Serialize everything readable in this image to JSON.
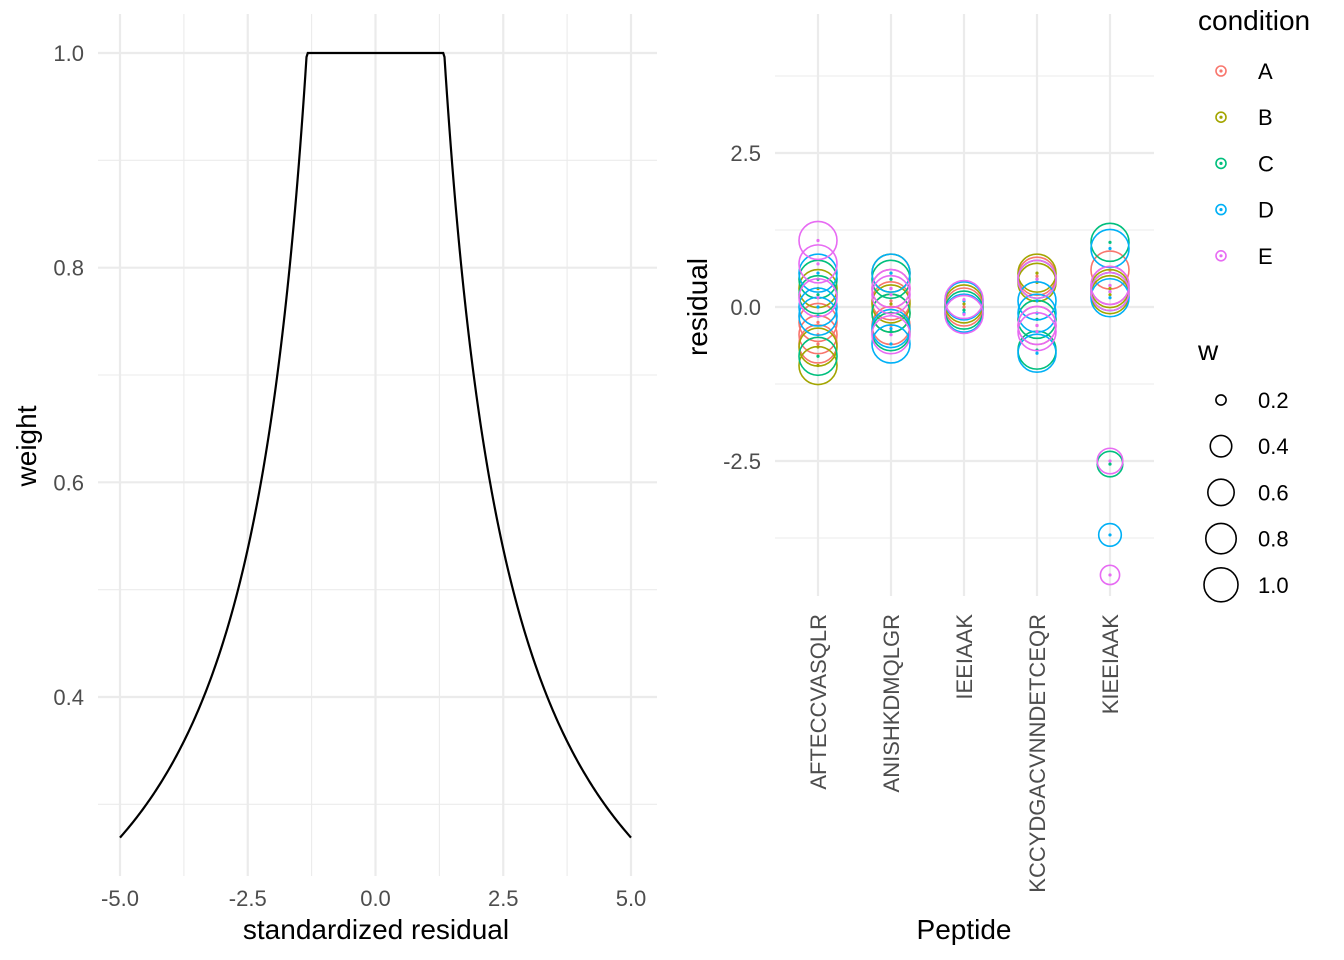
{
  "chart_data": [
    {
      "type": "line",
      "xlabel": "standardized residual",
      "ylabel": "weight",
      "xlim": [
        -5.0,
        5.0
      ],
      "ylim": [
        0.28,
        1.0
      ],
      "x_ticks": [
        -5.0,
        -2.5,
        0.0,
        2.5,
        5.0
      ],
      "x_tick_labels": [
        "-5.0",
        "-2.5",
        "0.0",
        "2.5",
        "5.0"
      ],
      "y_ticks": [
        0.4,
        0.6,
        0.8,
        1.0
      ],
      "y_tick_labels": [
        "0.4",
        "0.6",
        "0.8",
        "1.0"
      ],
      "grid": true,
      "series": [
        {
          "color": "#000000",
          "x": [
            -5.0,
            -4.5,
            -4.0,
            -3.5,
            -3.0,
            -2.5,
            -2.0,
            -1.75,
            -1.5,
            -1.345,
            0.0,
            1.345,
            1.5,
            1.75,
            2.0,
            2.5,
            3.0,
            3.5,
            4.0,
            4.5,
            5.0
          ],
          "y": [
            0.269,
            0.299,
            0.336,
            0.384,
            0.448,
            0.538,
            0.673,
            0.769,
            0.897,
            1.0,
            1.0,
            1.0,
            0.897,
            0.769,
            0.673,
            0.538,
            0.448,
            0.384,
            0.336,
            0.299,
            0.269
          ]
        }
      ]
    },
    {
      "type": "scatter",
      "xlabel": "Peptide",
      "ylabel": "residual",
      "categories": [
        "AFTECCVASQLR",
        "ANISHKDMQLGR",
        "IEEIAAK",
        "KCCYDGACVNNDETCEQR",
        "KIEEIAAK"
      ],
      "ylim": [
        -4.6,
        4.6
      ],
      "y_ticks": [
        -2.5,
        0.0,
        2.5
      ],
      "y_tick_labels": [
        "-2.5",
        "0.0",
        "2.5"
      ],
      "grid": true,
      "legend": {
        "condition": {
          "title": "condition",
          "entries": [
            {
              "label": "A",
              "color": "#F8766D"
            },
            {
              "label": "B",
              "color": "#A3A500"
            },
            {
              "label": "C",
              "color": "#00BF7D"
            },
            {
              "label": "D",
              "color": "#00B0F6"
            },
            {
              "label": "E",
              "color": "#E76BF3"
            }
          ]
        },
        "w": {
          "title": "w",
          "entries": [
            {
              "label": "0.2",
              "value": 0.2
            },
            {
              "label": "0.4",
              "value": 0.4
            },
            {
              "label": "0.6",
              "value": 0.6
            },
            {
              "label": "0.8",
              "value": 0.8
            },
            {
              "label": "1.0",
              "value": 1.0
            }
          ]
        },
        "placement": "right"
      },
      "points": [
        {
          "peptide": "AFTECCVASQLR",
          "condition": "A",
          "residual": -0.45,
          "w": 1.0
        },
        {
          "peptide": "AFTECCVASQLR",
          "condition": "A",
          "residual": -0.25,
          "w": 1.0
        },
        {
          "peptide": "AFTECCVASQLR",
          "condition": "A",
          "residual": -0.6,
          "w": 1.0
        },
        {
          "peptide": "AFTECCVASQLR",
          "condition": "B",
          "residual": -0.95,
          "w": 1.0
        },
        {
          "peptide": "AFTECCVASQLR",
          "condition": "B",
          "residual": -0.65,
          "w": 1.0
        },
        {
          "peptide": "AFTECCVASQLR",
          "condition": "B",
          "residual": 0.3,
          "w": 1.0
        },
        {
          "peptide": "AFTECCVASQLR",
          "condition": "C",
          "residual": -0.8,
          "w": 1.0
        },
        {
          "peptide": "AFTECCVASQLR",
          "condition": "C",
          "residual": 0.2,
          "w": 1.0
        },
        {
          "peptide": "AFTECCVASQLR",
          "condition": "C",
          "residual": 0.45,
          "w": 1.0
        },
        {
          "peptide": "AFTECCVASQLR",
          "condition": "D",
          "residual": 0.0,
          "w": 1.0
        },
        {
          "peptide": "AFTECCVASQLR",
          "condition": "D",
          "residual": 0.55,
          "w": 1.0
        },
        {
          "peptide": "AFTECCVASQLR",
          "condition": "D",
          "residual": -0.15,
          "w": 1.0
        },
        {
          "peptide": "AFTECCVASQLR",
          "condition": "E",
          "residual": 1.08,
          "w": 1.0
        },
        {
          "peptide": "AFTECCVASQLR",
          "condition": "E",
          "residual": 0.7,
          "w": 1.0
        },
        {
          "peptide": "AFTECCVASQLR",
          "condition": "E",
          "residual": 0.15,
          "w": 1.0
        },
        {
          "peptide": "ANISHKDMQLGR",
          "condition": "A",
          "residual": 0.3,
          "w": 1.0
        },
        {
          "peptide": "ANISHKDMQLGR",
          "condition": "A",
          "residual": -0.3,
          "w": 1.0
        },
        {
          "peptide": "ANISHKDMQLGR",
          "condition": "A",
          "residual": 0.1,
          "w": 1.0
        },
        {
          "peptide": "ANISHKDMQLGR",
          "condition": "B",
          "residual": 0.55,
          "w": 1.0
        },
        {
          "peptide": "ANISHKDMQLGR",
          "condition": "B",
          "residual": -0.1,
          "w": 1.0
        },
        {
          "peptide": "ANISHKDMQLGR",
          "condition": "B",
          "residual": 0.05,
          "w": 1.0
        },
        {
          "peptide": "ANISHKDMQLGR",
          "condition": "C",
          "residual": 0.45,
          "w": 1.0
        },
        {
          "peptide": "ANISHKDMQLGR",
          "condition": "C",
          "residual": -0.1,
          "w": 1.0
        },
        {
          "peptide": "ANISHKDMQLGR",
          "condition": "C",
          "residual": -0.4,
          "w": 1.0
        },
        {
          "peptide": "ANISHKDMQLGR",
          "condition": "D",
          "residual": -0.6,
          "w": 1.0
        },
        {
          "peptide": "ANISHKDMQLGR",
          "condition": "D",
          "residual": 0.55,
          "w": 1.0
        },
        {
          "peptide": "ANISHKDMQLGR",
          "condition": "D",
          "residual": -0.35,
          "w": 1.0
        },
        {
          "peptide": "ANISHKDMQLGR",
          "condition": "E",
          "residual": 0.3,
          "w": 1.0
        },
        {
          "peptide": "ANISHKDMQLGR",
          "condition": "E",
          "residual": -0.45,
          "w": 1.0
        },
        {
          "peptide": "ANISHKDMQLGR",
          "condition": "E",
          "residual": 0.2,
          "w": 1.0
        },
        {
          "peptide": "IEEIAAK",
          "condition": "A",
          "residual": 0.0,
          "w": 1.0
        },
        {
          "peptide": "IEEIAAK",
          "condition": "B",
          "residual": 0.05,
          "w": 1.0
        },
        {
          "peptide": "IEEIAAK",
          "condition": "C",
          "residual": -0.05,
          "w": 1.0
        },
        {
          "peptide": "IEEIAAK",
          "condition": "D",
          "residual": 0.1,
          "w": 1.0
        },
        {
          "peptide": "IEEIAAK",
          "condition": "D",
          "residual": -0.1,
          "w": 1.0
        },
        {
          "peptide": "IEEIAAK",
          "condition": "E",
          "residual": 0.12,
          "w": 1.0
        },
        {
          "peptide": "IEEIAAK",
          "condition": "E",
          "residual": -0.12,
          "w": 1.0
        },
        {
          "peptide": "KCCYDGACVNNDETCEQR",
          "condition": "A",
          "residual": 0.5,
          "w": 1.0
        },
        {
          "peptide": "KCCYDGACVNNDETCEQR",
          "condition": "A",
          "residual": -0.3,
          "w": 1.0
        },
        {
          "peptide": "KCCYDGACVNNDETCEQR",
          "condition": "B",
          "residual": 0.55,
          "w": 1.0
        },
        {
          "peptide": "KCCYDGACVNNDETCEQR",
          "condition": "B",
          "residual": 0.4,
          "w": 1.0
        },
        {
          "peptide": "KCCYDGACVNNDETCEQR",
          "condition": "C",
          "residual": 0.45,
          "w": 1.0
        },
        {
          "peptide": "KCCYDGACVNNDETCEQR",
          "condition": "C",
          "residual": -0.2,
          "w": 1.0
        },
        {
          "peptide": "KCCYDGACVNNDETCEQR",
          "condition": "C",
          "residual": -0.7,
          "w": 1.0
        },
        {
          "peptide": "KCCYDGACVNNDETCEQR",
          "condition": "D",
          "residual": -0.75,
          "w": 1.0
        },
        {
          "peptide": "KCCYDGACVNNDETCEQR",
          "condition": "D",
          "residual": -0.1,
          "w": 1.0
        },
        {
          "peptide": "KCCYDGACVNNDETCEQR",
          "condition": "D",
          "residual": 0.1,
          "w": 1.0
        },
        {
          "peptide": "KCCYDGACVNNDETCEQR",
          "condition": "E",
          "residual": -0.4,
          "w": 1.0
        },
        {
          "peptide": "KCCYDGACVNNDETCEQR",
          "condition": "E",
          "residual": 0.45,
          "w": 1.0
        },
        {
          "peptide": "KCCYDGACVNNDETCEQR",
          "condition": "E",
          "residual": -0.3,
          "w": 1.0
        },
        {
          "peptide": "KIEEIAAK",
          "condition": "A",
          "residual": 0.6,
          "w": 1.0
        },
        {
          "peptide": "KIEEIAAK",
          "condition": "A",
          "residual": 0.35,
          "w": 1.0
        },
        {
          "peptide": "KIEEIAAK",
          "condition": "B",
          "residual": 0.2,
          "w": 1.0
        },
        {
          "peptide": "KIEEIAAK",
          "condition": "B",
          "residual": 0.3,
          "w": 1.0
        },
        {
          "peptide": "KIEEIAAK",
          "condition": "C",
          "residual": 1.05,
          "w": 1.0
        },
        {
          "peptide": "KIEEIAAK",
          "condition": "C",
          "residual": 0.25,
          "w": 1.0
        },
        {
          "peptide": "KIEEIAAK",
          "condition": "D",
          "residual": 0.95,
          "w": 1.0
        },
        {
          "peptide": "KIEEIAAK",
          "condition": "D",
          "residual": 0.15,
          "w": 1.0
        },
        {
          "peptide": "KIEEIAAK",
          "condition": "E",
          "residual": 0.35,
          "w": 1.0
        },
        {
          "peptide": "KIEEIAAK",
          "condition": "E",
          "residual": 0.25,
          "w": 1.0
        },
        {
          "peptide": "KIEEIAAK",
          "condition": "C",
          "residual": -2.55,
          "w": 0.4
        },
        {
          "peptide": "KIEEIAAK",
          "condition": "E",
          "residual": -2.5,
          "w": 0.4
        },
        {
          "peptide": "KIEEIAAK",
          "condition": "D",
          "residual": -3.7,
          "w": 0.3
        },
        {
          "peptide": "KIEEIAAK",
          "condition": "E",
          "residual": -4.35,
          "w": 0.2
        }
      ]
    }
  ]
}
